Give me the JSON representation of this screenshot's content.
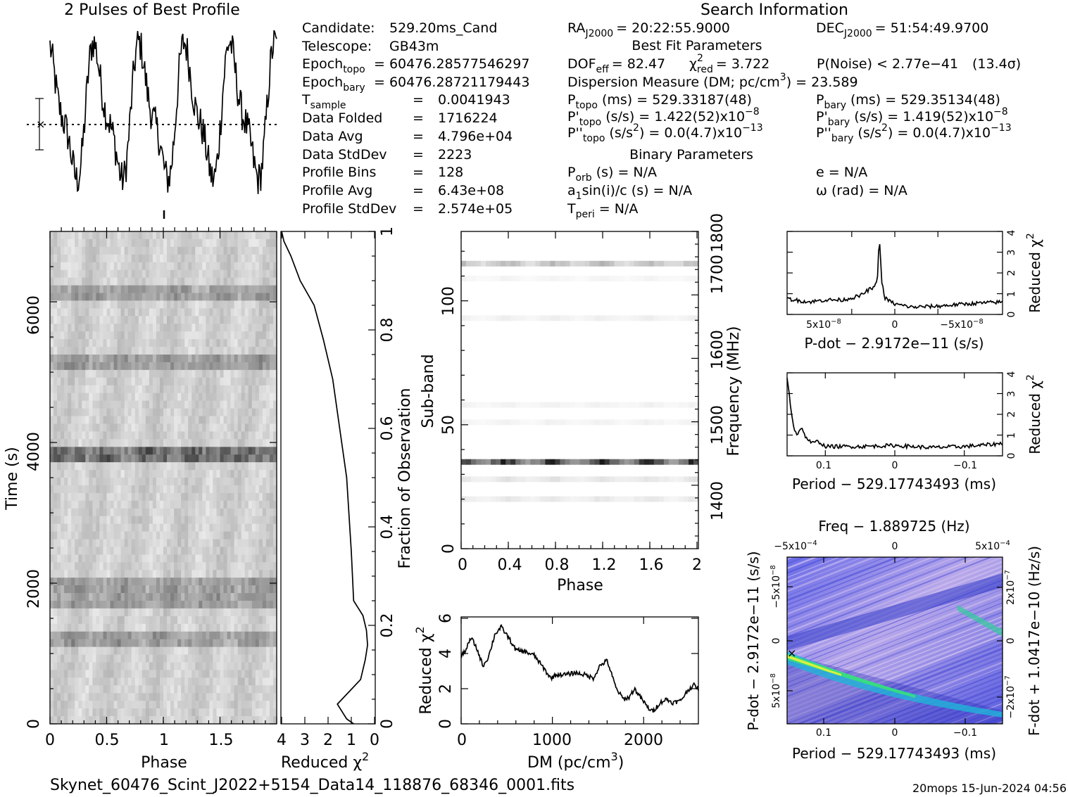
{
  "figure": {
    "profile_title": "2 Pulses of Best Profile",
    "search_title": "Search Information",
    "best_fit_title": "Best Fit Parameters",
    "binary_title": "Binary Parameters",
    "filename": "Skynet_60476_Scint_J2022+5154_Data14_118876_68346_0001.fits",
    "footer_right": "20mops 15-Jun-2024 04:56"
  },
  "info_left": [
    {
      "label": "Candidate:",
      "value": "529.20ms_Cand"
    },
    {
      "label": "Telescope:",
      "value": "GB43m"
    },
    {
      "label": "Epoch",
      "sub": "topo",
      "value": "= 60476.28577546297"
    },
    {
      "label": "Epoch",
      "sub": "bary",
      "value": "= 60476.28721179443"
    },
    {
      "label": "T",
      "sub": "sample",
      "value": "=",
      "value2": "0.0041943"
    },
    {
      "label": "Data Folded",
      "value": "=",
      "value2": "1716224"
    },
    {
      "label": "Data Avg",
      "value": "=",
      "value2": "4.796e+04"
    },
    {
      "label": "Data StdDev",
      "value": "=",
      "value2": "2223"
    },
    {
      "label": "Profile Bins",
      "value": "=",
      "value2": "128"
    },
    {
      "label": "Profile Avg",
      "value": "=",
      "value2": "6.43e+08"
    },
    {
      "label": "Profile StdDev",
      "value": "=",
      "value2": "2.574e+05"
    }
  ],
  "info_right": {
    "ra": "RA",
    "ra_sub": "J2000",
    "ra_val": "= 20:22:55.9000",
    "dec": "DEC",
    "dec_sub": "J2000",
    "dec_val": "= 51:54:49.9700",
    "dof_line": "DOF",
    "dof_sub": "eff",
    "dof_val": "= 82.47",
    "chi_label": "χ",
    "chi_sup": "2",
    "chi_sub": "red",
    "chi_val": "= 3.722",
    "pnoise": "P(Noise) < 2.77e−41",
    "sigma": "(13.4σ)",
    "dm_line": "Dispersion Measure (DM; pc/cm",
    "dm_sup": "3",
    "dm_val": ") = 23.589",
    "ptopo": "P",
    "ptopo_sub": "topo",
    "ptopo_val": "(ms) =  529.33187(48)",
    "pbary": "P",
    "pbary_sub": "bary",
    "pbary_val": "(ms) =  529.35134(48)",
    "pdtopo": "P'",
    "pdtopo_sub": "topo",
    "pdtopo_val": "(s/s) =  1.422(52)x10",
    "pdtopo_exp": "−8",
    "pdbary": "P'",
    "pdbary_sub": "bary",
    "pdbary_val": "(s/s) =  1.419(52)x10",
    "pdbary_exp": "−8",
    "pddtopo": "P''",
    "pddtopo_sub": "topo",
    "pddtopo_val": "(s/s",
    "pddtopo_val2": ") = 0.0(4.7)x10",
    "pdd_sup": "2",
    "pdd_exp": "−13",
    "pddbary": "P''",
    "pddbary_sub": "bary",
    "pddbary_val": "(s/s",
    "pddbary_val2": ") = 0.0(4.7)x10",
    "porb": "P",
    "porb_sub": "orb",
    "porb_val": "(s) = N/A",
    "ecc": "e = N/A",
    "asini_a": "a",
    "asini_sub": "1",
    "asini_val": "sin(i)/c (s) = N/A",
    "omega": "ω (rad) = N/A",
    "tperi": "T",
    "tperi_sub": "peri",
    "tperi_val": "= N/A"
  },
  "axes": {
    "time_ylabel": "Time (s)",
    "phase_xlabel": "Phase",
    "redchi_xlabel": "Reduced χ",
    "redchi_sup": "2",
    "frac_label": "Fraction of Observation",
    "subband_label": "Sub-band",
    "freq_label": "Frequency (MHz)",
    "sub_phase_label": "Phase",
    "dm_xlabel": "DM (pc/cm",
    "dm_xsup": "3",
    "dm_xclose": ")",
    "dm_ylabel": "Reduced χ",
    "pdot_label": "P-dot − 2.9172e−11 (s/s)",
    "pdot_ylabel": "Reduced χ",
    "period_label": "Period − 529.17743493 (ms)",
    "period_ylabel": "Reduced χ",
    "freq_top_label": "Freq − 1.889725 (Hz)",
    "map_xlabel": "Period − 529.17743493 (ms)",
    "map_ylabel": "P-dot − 2.9172e−11 (s/s)",
    "map_rlabel": "F-dot + 1.0417e−10 (Hz/s)"
  },
  "ticks": {
    "time": [
      "0",
      "2000",
      "4000",
      "6000"
    ],
    "phase": [
      "0",
      "0.5",
      "1",
      "1.5"
    ],
    "redchi": [
      "4",
      "3",
      "2",
      "1",
      "0"
    ],
    "frac": [
      "0.2",
      "0.4",
      "0.6",
      "0.8",
      "1"
    ],
    "frac_zero": "0",
    "subband": [
      "0",
      "50",
      "100"
    ],
    "freq": [
      "1400",
      "1500",
      "1600",
      "1700",
      "1800"
    ],
    "sub_phase": [
      "0",
      "0.4",
      "0.8",
      "1.2",
      "1.6",
      "2"
    ],
    "dm_x": [
      "0",
      "1000",
      "2000"
    ],
    "dm_y": [
      "0",
      "2",
      "4",
      "6"
    ],
    "pdot_x": [
      "5x10",
      "0",
      "−5x10"
    ],
    "pdot_x_exp": "−8",
    "chi_small": [
      "0",
      "1",
      "2",
      "3",
      "4"
    ],
    "period_x": [
      "0.1",
      "0",
      "−0.1"
    ],
    "map_top": [
      "−5x10",
      "0",
      "5x10"
    ],
    "map_top_exp": "−4",
    "map_left": [
      "5x10",
      "0",
      "−5x10"
    ],
    "map_left_exp": "−8",
    "map_right": [
      "−2x10",
      "0",
      "2x10"
    ],
    "map_right_exp": "−7"
  },
  "chart_data": [
    {
      "type": "line",
      "title": "2 Pulses of Best Profile",
      "xlabel": "",
      "ylabel": "",
      "xlim": [
        0,
        2
      ],
      "note": "two repetitions of the 128-bin folded profile, five broad peaks per plotted span"
    },
    {
      "type": "heatmap",
      "xlabel": "Phase",
      "ylabel": "Time (s)",
      "xlim": [
        0,
        2
      ],
      "ylim": [
        0,
        7000
      ],
      "dark_rows_time_s": [
        3800,
        1780,
        1960,
        1170,
        6150,
        5150
      ],
      "colormap": "grayscale"
    },
    {
      "type": "line",
      "xlabel": "Reduced χ²",
      "ylabel": "Fraction of Observation",
      "xlim": [
        4,
        0
      ],
      "ylim": [
        0,
        1
      ],
      "x": [
        0.9,
        1.2,
        1.6,
        1.4,
        0.6,
        0.4,
        0.3,
        0.35,
        0.5,
        0.9,
        1.0,
        1.2,
        1.5,
        1.8,
        2.2,
        2.6,
        3.2,
        3.6,
        3.9,
        4.0
      ],
      "y": [
        0.0,
        0.01,
        0.04,
        0.05,
        0.09,
        0.13,
        0.16,
        0.19,
        0.22,
        0.25,
        0.35,
        0.5,
        0.6,
        0.7,
        0.78,
        0.85,
        0.9,
        0.95,
        0.98,
        1.0
      ]
    },
    {
      "type": "heatmap",
      "xlabel": "Phase",
      "ylabel": "Sub-band",
      "y2label": "Frequency (MHz)",
      "xlim": [
        0,
        2
      ],
      "ylim": [
        0,
        128
      ],
      "y2lim": [
        1300,
        1800
      ],
      "bright_subbands": [
        35,
        115,
        28,
        20,
        93,
        51,
        58,
        109
      ],
      "colormap": "grayscale"
    },
    {
      "type": "line",
      "xlabel": "DM (pc/cm³)",
      "ylabel": "Reduced χ²",
      "xlim": [
        0,
        2600
      ],
      "ylim": [
        0,
        6
      ],
      "x": [
        0,
        60,
        110,
        170,
        240,
        300,
        370,
        440,
        520,
        600,
        700,
        800,
        900,
        980,
        1050,
        1150,
        1250,
        1350,
        1450,
        1520,
        1600,
        1650,
        1700,
        1780,
        1840,
        1900,
        1980,
        2050,
        2100,
        2180,
        2250,
        2320,
        2400,
        2500,
        2550,
        2600
      ],
      "y": [
        3.8,
        4.3,
        4.9,
        4.3,
        3.3,
        3.8,
        5.1,
        5.5,
        4.9,
        4.2,
        4.1,
        3.9,
        3.2,
        2.6,
        2.8,
        2.8,
        2.9,
        2.8,
        2.6,
        3.3,
        3.6,
        2.8,
        2.0,
        1.4,
        1.5,
        2.0,
        1.4,
        0.9,
        0.7,
        1.2,
        1.4,
        1.2,
        1.3,
        2.0,
        2.2,
        2.0
      ]
    },
    {
      "type": "line",
      "xlabel": "P-dot − 2.9172e−11 (s/s)",
      "ylabel": "Reduced χ²",
      "xlim": [
        1.25e-07,
        -1.25e-07
      ],
      "ylim": [
        0,
        4
      ],
      "x": [
        1.25e-07,
        1e-07,
        8e-08,
        6e-08,
        4e-08,
        3e-08,
        2.3e-08,
        2e-08,
        1.8e-08,
        1.5e-08,
        1.2e-08,
        8e-09,
        0,
        -2e-08,
        -5e-08,
        -8e-08,
        -1e-07,
        -1.25e-07
      ],
      "y": [
        0.75,
        0.6,
        0.7,
        0.7,
        0.9,
        1.2,
        1.3,
        1.9,
        3.7,
        1.6,
        0.8,
        0.7,
        0.5,
        0.35,
        0.4,
        0.5,
        0.55,
        0.6
      ]
    },
    {
      "type": "line",
      "xlabel": "Period − 529.17743493 (ms)",
      "ylabel": "Reduced χ²",
      "xlim": [
        0.155,
        -0.155
      ],
      "ylim": [
        0,
        4
      ],
      "x": [
        0.155,
        0.15,
        0.145,
        0.14,
        0.135,
        0.13,
        0.12,
        0.11,
        0.1,
        0.05,
        0,
        -0.05,
        -0.1,
        -0.14,
        -0.155
      ],
      "y": [
        3.8,
        2.4,
        1.3,
        1.0,
        1.4,
        1.0,
        0.6,
        0.7,
        0.45,
        0.45,
        0.5,
        0.4,
        0.45,
        0.55,
        0.6
      ]
    },
    {
      "type": "heatmap",
      "xlabel": "Period − 529.17743493 (ms)",
      "ylabel": "P-dot − 2.9172e−11 (s/s)",
      "x2label": "Freq − 1.889725 (Hz)",
      "y2label": "F-dot + 1.0417e−10 (Hz/s)",
      "xlim": [
        0.155,
        -0.155
      ],
      "ylim": [
        1.25e-07,
        -1.25e-07
      ],
      "colormap": "blue-purple-green rainbow"
    }
  ]
}
